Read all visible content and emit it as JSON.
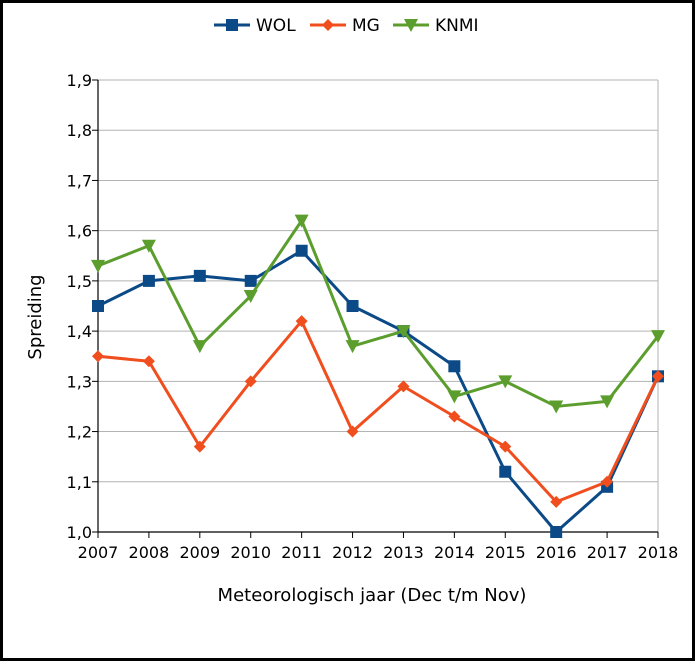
{
  "chart_data": {
    "type": "line",
    "title": "",
    "xlabel": "Meteorologisch jaar (Dec t/m Nov)",
    "ylabel": "Spreiding",
    "categories": [
      "2007",
      "2008",
      "2009",
      "2010",
      "2011",
      "2012",
      "2013",
      "2014",
      "2015",
      "2016",
      "2017",
      "2018"
    ],
    "ylim": [
      1.0,
      1.9
    ],
    "yticks": [
      "1,0",
      "1,1",
      "1,2",
      "1,3",
      "1,4",
      "1,5",
      "1,6",
      "1,7",
      "1,8",
      "1,9"
    ],
    "grid": true,
    "legend_position": "top-center",
    "series": [
      {
        "name": "WOL",
        "color": "#0b4a86",
        "marker": "square",
        "values": [
          1.45,
          1.5,
          1.51,
          1.5,
          1.56,
          1.45,
          1.4,
          1.33,
          1.12,
          1.0,
          1.09,
          1.31
        ]
      },
      {
        "name": "MG",
        "color": "#f04e1e",
        "marker": "diamond",
        "values": [
          1.35,
          1.34,
          1.17,
          1.3,
          1.42,
          1.2,
          1.29,
          1.23,
          1.17,
          1.06,
          1.1,
          1.31
        ]
      },
      {
        "name": "KNMI",
        "color": "#5c9e2e",
        "marker": "triangle-down",
        "values": [
          1.53,
          1.57,
          1.37,
          1.47,
          1.62,
          1.37,
          1.4,
          1.27,
          1.3,
          1.25,
          1.26,
          1.39
        ]
      }
    ]
  }
}
